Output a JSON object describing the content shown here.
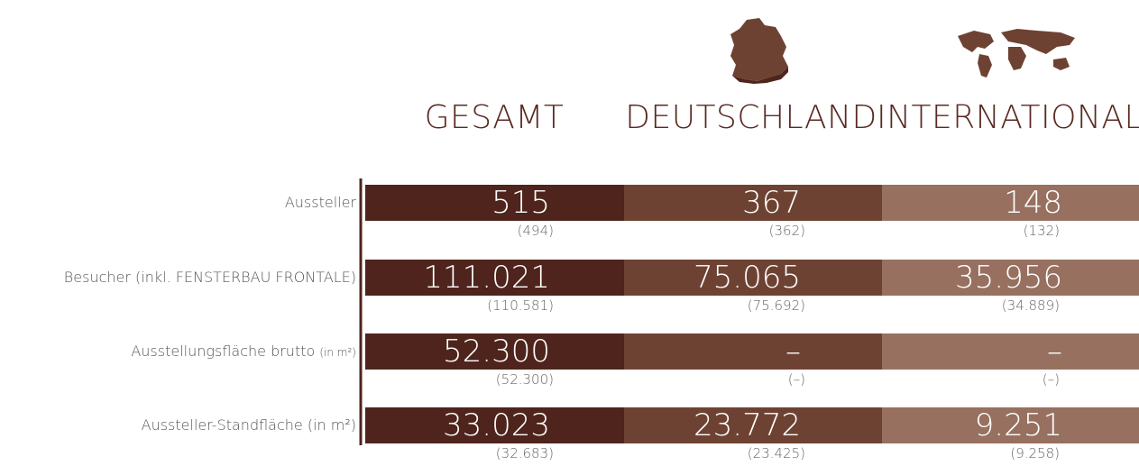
{
  "columns": [
    {
      "title": "GESAMT"
    },
    {
      "title": "DEUTSCHLAND"
    },
    {
      "title": "INTERNATIONAL"
    }
  ],
  "rows": [
    {
      "label": "Aussteller",
      "values": [
        "515",
        "367",
        "148"
      ],
      "previous": [
        "(494)",
        "(362)",
        "(132)"
      ]
    },
    {
      "label": "Besucher (inkl. FENSTERBAU FRONTALE)",
      "values": [
        "111.021",
        "75.065",
        "35.956"
      ],
      "previous": [
        "(110.581)",
        "(75.692)",
        "(34.889)"
      ]
    },
    {
      "label": "Ausstellungsfläche brutto",
      "label_note": "(in m²)",
      "values": [
        "52.300",
        "–",
        "–"
      ],
      "previous": [
        "(52.300)",
        "(–)",
        "(–)"
      ]
    },
    {
      "label": "Aussteller-Standfläche (in m²)",
      "values": [
        "33.023",
        "23.772",
        "9.251"
      ],
      "previous": [
        "(32.683)",
        "(23.425)",
        "(9.258)"
      ]
    }
  ]
}
